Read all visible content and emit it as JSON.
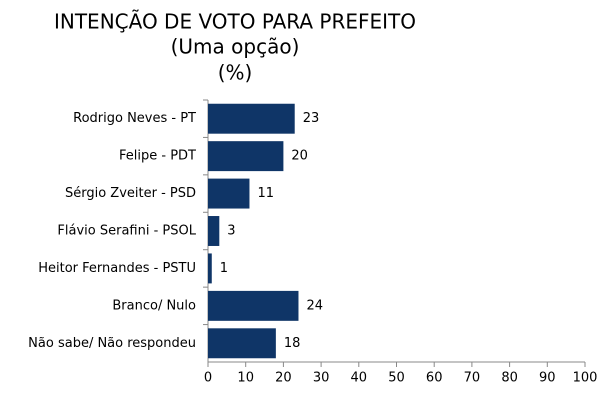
{
  "chart_data": {
    "type": "hbar",
    "title_lines": [
      "INTENÇÃO DE VOTO PARA PREFEITO",
      "(Uma opção)",
      "(%)"
    ],
    "categories": [
      "Rodrigo Neves - PT",
      "Felipe - PDT",
      "Sérgio Zveiter - PSD",
      "Flávio Serafini - PSOL",
      "Heitor Fernandes - PSTU",
      "Branco/ Nulo",
      "Não sabe/ Não respondeu"
    ],
    "values": [
      23,
      20,
      11,
      3,
      1,
      24,
      18
    ],
    "color": "#0f3567",
    "xlim": [
      0,
      100
    ],
    "xticks": [
      0,
      10,
      20,
      30,
      40,
      50,
      60,
      70,
      80,
      90,
      100
    ],
    "grid": false
  }
}
